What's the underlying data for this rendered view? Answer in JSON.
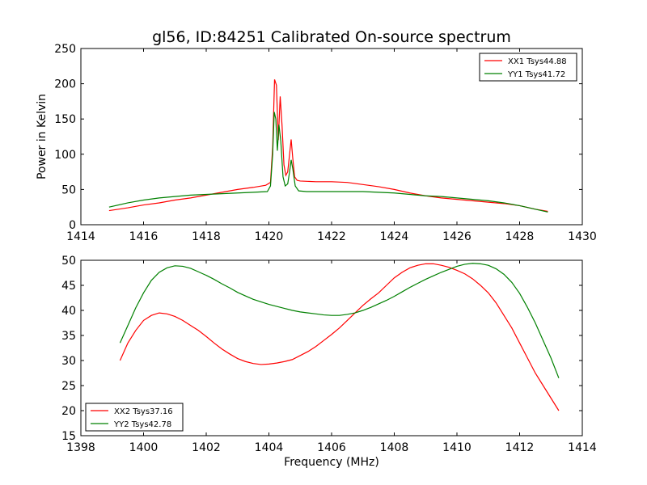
{
  "title": "gl56, ID:84251 Calibrated On-source spectrum",
  "chart_data": [
    {
      "type": "line",
      "ylabel": "Power in Kelvin",
      "xlabel": "",
      "xlim": [
        1414,
        1430
      ],
      "ylim": [
        0,
        250
      ],
      "xticks": [
        1414,
        1416,
        1418,
        1420,
        1422,
        1424,
        1426,
        1428,
        1430
      ],
      "yticks": [
        0,
        50,
        100,
        150,
        200,
        250
      ],
      "legend": "top-right",
      "grid": false,
      "series": [
        {
          "name": "XX1 Tsys44.88",
          "color": "#ff0000",
          "points": [
            [
              1414.9,
              20
            ],
            [
              1415.5,
              24
            ],
            [
              1416.0,
              28
            ],
            [
              1416.5,
              31
            ],
            [
              1417.0,
              35
            ],
            [
              1417.5,
              38
            ],
            [
              1418.0,
              42
            ],
            [
              1418.5,
              46
            ],
            [
              1419.0,
              50
            ],
            [
              1419.5,
              53
            ],
            [
              1419.9,
              56
            ],
            [
              1420.05,
              60
            ],
            [
              1420.12,
              110
            ],
            [
              1420.18,
              206
            ],
            [
              1420.24,
              198
            ],
            [
              1420.3,
              120
            ],
            [
              1420.36,
              182
            ],
            [
              1420.42,
              140
            ],
            [
              1420.48,
              85
            ],
            [
              1420.54,
              70
            ],
            [
              1420.6,
              75
            ],
            [
              1420.66,
              100
            ],
            [
              1420.71,
              121
            ],
            [
              1420.76,
              95
            ],
            [
              1420.82,
              68
            ],
            [
              1420.9,
              63
            ],
            [
              1421.0,
              62
            ],
            [
              1421.5,
              61
            ],
            [
              1422.0,
              61
            ],
            [
              1422.5,
              60
            ],
            [
              1423.0,
              57
            ],
            [
              1423.5,
              54
            ],
            [
              1424.0,
              50
            ],
            [
              1424.5,
              45
            ],
            [
              1425.0,
              41
            ],
            [
              1425.5,
              38
            ],
            [
              1426.0,
              36
            ],
            [
              1426.5,
              34
            ],
            [
              1427.0,
              32
            ],
            [
              1427.5,
              30
            ],
            [
              1428.0,
              27
            ],
            [
              1428.5,
              22
            ],
            [
              1428.9,
              19
            ]
          ]
        },
        {
          "name": "YY1 Tsys41.72",
          "color": "#008000",
          "points": [
            [
              1414.9,
              25
            ],
            [
              1415.5,
              31
            ],
            [
              1416.0,
              35
            ],
            [
              1416.5,
              38
            ],
            [
              1417.0,
              40
            ],
            [
              1417.5,
              42
            ],
            [
              1418.0,
              43
            ],
            [
              1418.5,
              44
            ],
            [
              1419.0,
              45
            ],
            [
              1419.5,
              46
            ],
            [
              1419.95,
              47
            ],
            [
              1420.05,
              55
            ],
            [
              1420.12,
              100
            ],
            [
              1420.17,
              160
            ],
            [
              1420.22,
              150
            ],
            [
              1420.27,
              105
            ],
            [
              1420.32,
              142
            ],
            [
              1420.38,
              118
            ],
            [
              1420.45,
              68
            ],
            [
              1420.52,
              55
            ],
            [
              1420.6,
              58
            ],
            [
              1420.66,
              75
            ],
            [
              1420.71,
              92
            ],
            [
              1420.76,
              80
            ],
            [
              1420.84,
              55
            ],
            [
              1420.95,
              48
            ],
            [
              1421.2,
              47
            ],
            [
              1422.0,
              47
            ],
            [
              1423.0,
              47
            ],
            [
              1423.5,
              46
            ],
            [
              1424.0,
              45
            ],
            [
              1424.5,
              43
            ],
            [
              1425.0,
              41
            ],
            [
              1425.5,
              40
            ],
            [
              1426.0,
              38
            ],
            [
              1426.5,
              36
            ],
            [
              1427.0,
              34
            ],
            [
              1427.5,
              31
            ],
            [
              1428.0,
              27
            ],
            [
              1428.5,
              22
            ],
            [
              1428.9,
              18
            ]
          ]
        }
      ]
    },
    {
      "type": "line",
      "ylabel": "",
      "xlabel": "Frequency (MHz)",
      "xlim": [
        1398,
        1414
      ],
      "ylim": [
        15,
        50
      ],
      "xticks": [
        1398,
        1400,
        1402,
        1404,
        1406,
        1408,
        1410,
        1412,
        1414
      ],
      "yticks": [
        15,
        20,
        25,
        30,
        35,
        40,
        45,
        50
      ],
      "legend": "bottom-left",
      "grid": false,
      "series": [
        {
          "name": "XX2 Tsys37.16",
          "color": "#ff0000",
          "points": [
            [
              1399.25,
              30
            ],
            [
              1399.5,
              33.5
            ],
            [
              1399.75,
              36
            ],
            [
              1400.0,
              38
            ],
            [
              1400.25,
              39
            ],
            [
              1400.5,
              39.5
            ],
            [
              1400.75,
              39.3
            ],
            [
              1401.0,
              38.8
            ],
            [
              1401.25,
              38
            ],
            [
              1401.5,
              37
            ],
            [
              1401.75,
              36
            ],
            [
              1402.0,
              34.8
            ],
            [
              1402.25,
              33.5
            ],
            [
              1402.5,
              32.3
            ],
            [
              1402.75,
              31.3
            ],
            [
              1403.0,
              30.4
            ],
            [
              1403.25,
              29.8
            ],
            [
              1403.5,
              29.4
            ],
            [
              1403.75,
              29.2
            ],
            [
              1404.0,
              29.3
            ],
            [
              1404.25,
              29.5
            ],
            [
              1404.5,
              29.8
            ],
            [
              1404.75,
              30.2
            ],
            [
              1405.0,
              31
            ],
            [
              1405.25,
              31.8
            ],
            [
              1405.5,
              32.8
            ],
            [
              1405.75,
              34
            ],
            [
              1406.0,
              35.2
            ],
            [
              1406.25,
              36.5
            ],
            [
              1406.5,
              38
            ],
            [
              1406.75,
              39.5
            ],
            [
              1407.0,
              41
            ],
            [
              1407.25,
              42.3
            ],
            [
              1407.5,
              43.5
            ],
            [
              1407.75,
              45
            ],
            [
              1408.0,
              46.5
            ],
            [
              1408.25,
              47.6
            ],
            [
              1408.5,
              48.5
            ],
            [
              1408.75,
              49
            ],
            [
              1409.0,
              49.3
            ],
            [
              1409.25,
              49.3
            ],
            [
              1409.5,
              49
            ],
            [
              1409.75,
              48.6
            ],
            [
              1410.0,
              48
            ],
            [
              1410.25,
              47.3
            ],
            [
              1410.5,
              46.3
            ],
            [
              1410.75,
              45
            ],
            [
              1411.0,
              43.5
            ],
            [
              1411.25,
              41.5
            ],
            [
              1411.5,
              39
            ],
            [
              1411.75,
              36.5
            ],
            [
              1412.0,
              33.5
            ],
            [
              1412.25,
              30.5
            ],
            [
              1412.5,
              27.5
            ],
            [
              1412.75,
              25
            ],
            [
              1413.0,
              22.5
            ],
            [
              1413.25,
              20
            ]
          ]
        },
        {
          "name": "YY2 Tsys42.78",
          "color": "#008000",
          "points": [
            [
              1399.25,
              33.5
            ],
            [
              1399.5,
              37
            ],
            [
              1399.75,
              40.5
            ],
            [
              1400.0,
              43.5
            ],
            [
              1400.25,
              46
            ],
            [
              1400.5,
              47.6
            ],
            [
              1400.75,
              48.5
            ],
            [
              1401.0,
              48.9
            ],
            [
              1401.25,
              48.8
            ],
            [
              1401.5,
              48.4
            ],
            [
              1401.75,
              47.7
            ],
            [
              1402.0,
              47
            ],
            [
              1402.25,
              46.2
            ],
            [
              1402.5,
              45.3
            ],
            [
              1402.75,
              44.5
            ],
            [
              1403.0,
              43.6
            ],
            [
              1403.25,
              42.9
            ],
            [
              1403.5,
              42.2
            ],
            [
              1403.75,
              41.7
            ],
            [
              1404.0,
              41.2
            ],
            [
              1404.25,
              40.8
            ],
            [
              1404.5,
              40.4
            ],
            [
              1404.75,
              40
            ],
            [
              1405.0,
              39.7
            ],
            [
              1405.25,
              39.5
            ],
            [
              1405.5,
              39.3
            ],
            [
              1405.75,
              39.1
            ],
            [
              1406.0,
              39
            ],
            [
              1406.25,
              39
            ],
            [
              1406.5,
              39.2
            ],
            [
              1406.75,
              39.5
            ],
            [
              1407.0,
              40
            ],
            [
              1407.25,
              40.6
            ],
            [
              1407.5,
              41.3
            ],
            [
              1407.75,
              42
            ],
            [
              1408.0,
              42.8
            ],
            [
              1408.25,
              43.7
            ],
            [
              1408.5,
              44.6
            ],
            [
              1408.75,
              45.4
            ],
            [
              1409.0,
              46.2
            ],
            [
              1409.25,
              46.9
            ],
            [
              1409.5,
              47.6
            ],
            [
              1409.75,
              48.2
            ],
            [
              1410.0,
              48.8
            ],
            [
              1410.25,
              49.2
            ],
            [
              1410.5,
              49.4
            ],
            [
              1410.75,
              49.3
            ],
            [
              1411.0,
              49
            ],
            [
              1411.25,
              48.3
            ],
            [
              1411.5,
              47.2
            ],
            [
              1411.75,
              45.6
            ],
            [
              1412.0,
              43.4
            ],
            [
              1412.25,
              40.6
            ],
            [
              1412.5,
              37.5
            ],
            [
              1412.75,
              34
            ],
            [
              1413.0,
              30.5
            ],
            [
              1413.25,
              26.5
            ]
          ]
        }
      ]
    }
  ]
}
